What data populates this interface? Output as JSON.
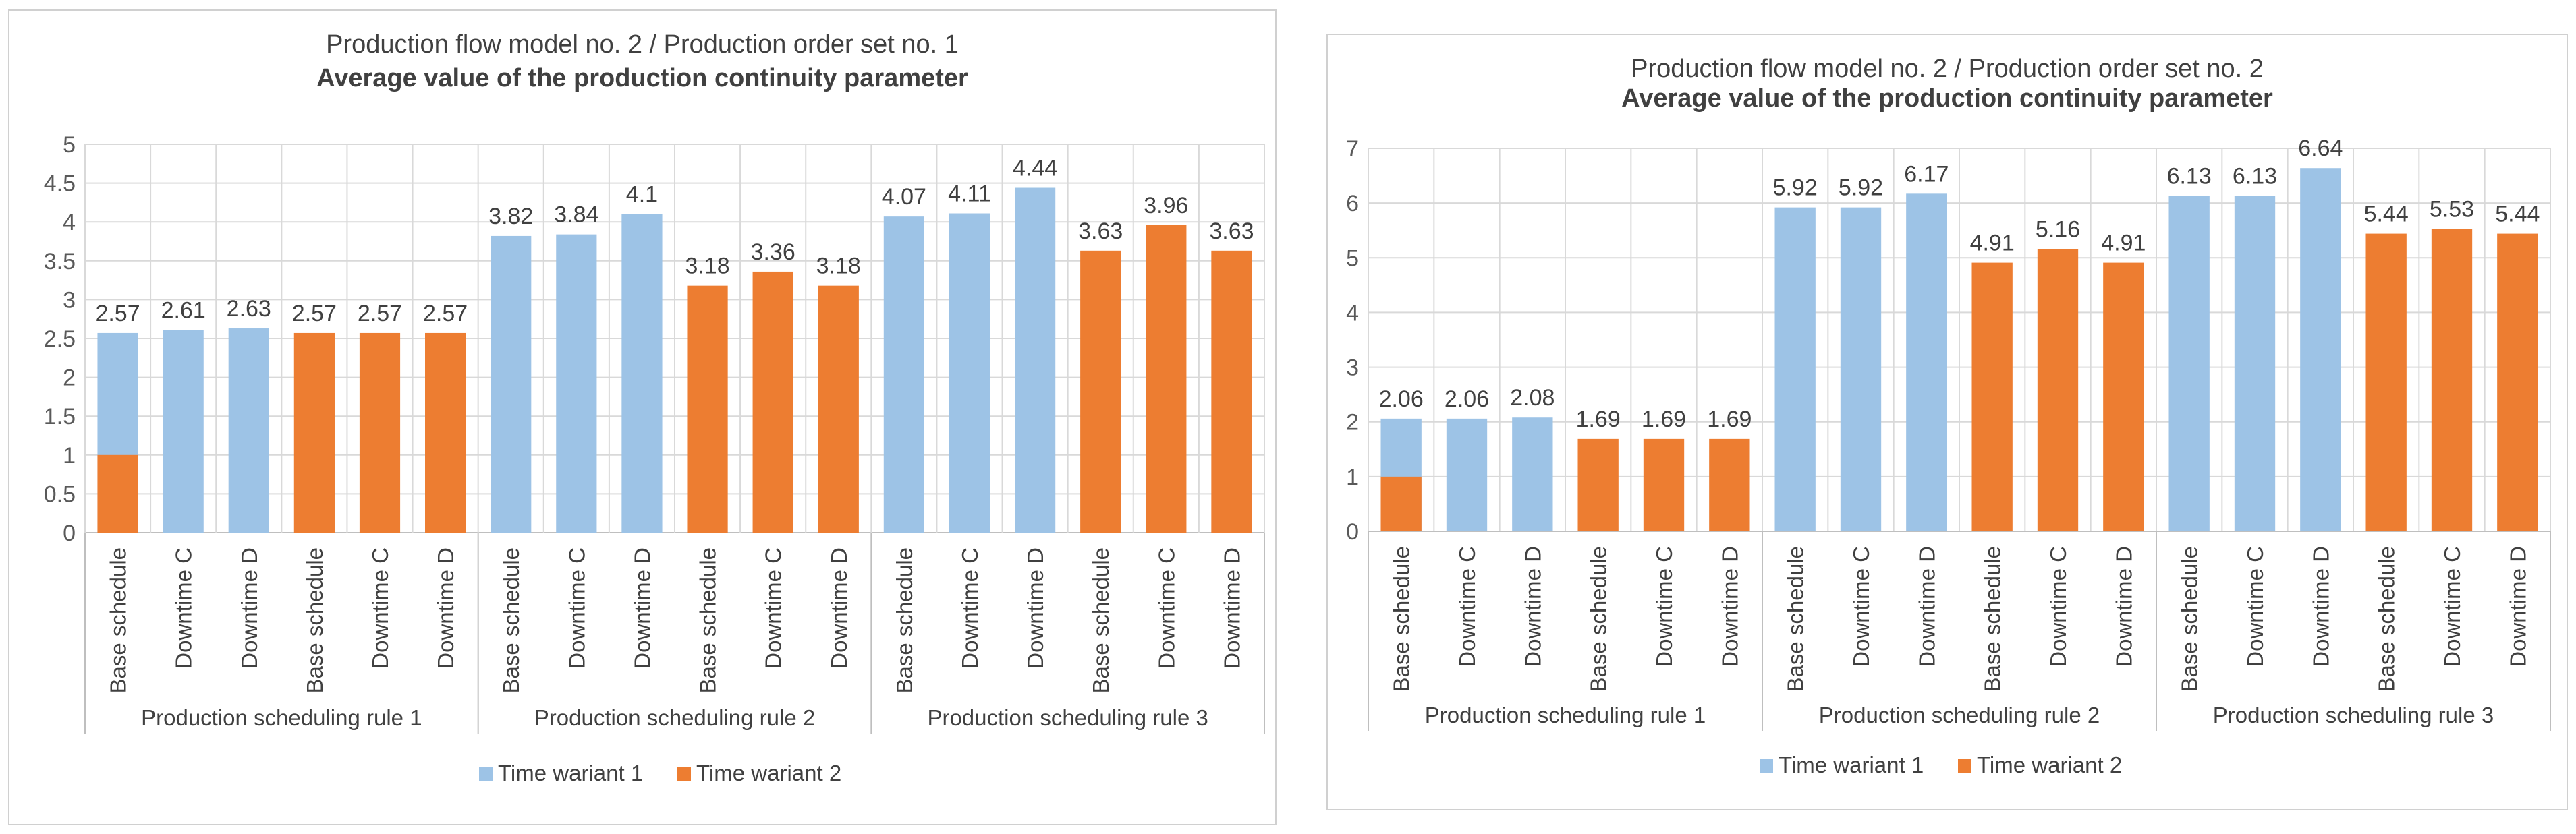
{
  "colors": {
    "variant1": "#9DC3E6",
    "variant2": "#ED7D31",
    "grid": "#D9D9D9",
    "axis": "#BFBFBF"
  },
  "chart_data": [
    {
      "type": "bar",
      "title": "Production flow model no. 2 / Production order set no. 1",
      "subtitle": "Average value of the production continuity parameter",
      "ylim": [
        0,
        5
      ],
      "yticks": [
        "0",
        "0.5",
        "1",
        "1.5",
        "2",
        "2.5",
        "3",
        "3.5",
        "4",
        "4.5",
        "5"
      ],
      "ytick_values": [
        0,
        0.5,
        1,
        1.5,
        2,
        2.5,
        3,
        3.5,
        4,
        4.5,
        5
      ],
      "groups": [
        "Production scheduling rule 1",
        "Production scheduling rule 2",
        "Production scheduling rule 3"
      ],
      "categories": [
        "Base schedule",
        "Downtime C",
        "Downtime D",
        "Base schedule",
        "Downtime C",
        "Downtime D",
        "Base schedule",
        "Downtime C",
        "Downtime D",
        "Base schedule",
        "Downtime C",
        "Downtime D",
        "Base schedule",
        "Downtime C",
        "Downtime D",
        "Base schedule",
        "Downtime C",
        "Downtime D"
      ],
      "values": [
        2.57,
        2.61,
        2.63,
        2.57,
        2.57,
        2.57,
        3.82,
        3.84,
        4.1,
        3.18,
        3.36,
        3.18,
        4.07,
        4.11,
        4.44,
        3.63,
        3.96,
        3.63
      ],
      "value_labels": [
        "2.57",
        "2.61",
        "2.63",
        "2.57",
        "2.57",
        "2.57",
        "3.82",
        "3.84",
        "4.1",
        "3.18",
        "3.36",
        "3.18",
        "4.07",
        "4.11",
        "4.44",
        "3.63",
        "3.96",
        "3.63"
      ],
      "series_index": [
        0,
        0,
        0,
        1,
        1,
        1,
        0,
        0,
        0,
        1,
        1,
        1,
        0,
        0,
        0,
        1,
        1,
        1
      ],
      "overlay": {
        "index": 0,
        "value": 1.0
      },
      "legend": [
        "Time wariant 1",
        "Time wariant 2"
      ],
      "legend_position": "bottom",
      "grid": true
    },
    {
      "type": "bar",
      "title": "Production flow model no. 2 / Production order set no. 2",
      "subtitle": "Average value of the production continuity parameter",
      "ylim": [
        0,
        7
      ],
      "yticks": [
        "0",
        "1",
        "2",
        "3",
        "4",
        "5",
        "6",
        "7"
      ],
      "ytick_values": [
        0,
        1,
        2,
        3,
        4,
        5,
        6,
        7
      ],
      "groups": [
        "Production scheduling rule 1",
        "Production scheduling rule 2",
        "Production scheduling rule 3"
      ],
      "categories": [
        "Base schedule",
        "Downtime C",
        "Downtime D",
        "Base schedule",
        "Downtime C",
        "Downtime D",
        "Base schedule",
        "Downtime C",
        "Downtime D",
        "Base schedule",
        "Downtime C",
        "Downtime D",
        "Base schedule",
        "Downtime C",
        "Downtime D",
        "Base schedule",
        "Downtime C",
        "Downtime D"
      ],
      "values": [
        2.06,
        2.06,
        2.08,
        1.69,
        1.69,
        1.69,
        5.92,
        5.92,
        6.17,
        4.91,
        5.16,
        4.91,
        6.13,
        6.13,
        6.64,
        5.44,
        5.53,
        5.44
      ],
      "value_labels": [
        "2.06",
        "2.06",
        "2.08",
        "1.69",
        "1.69",
        "1.69",
        "5.92",
        "5.92",
        "6.17",
        "4.91",
        "5.16",
        "4.91",
        "6.13",
        "6.13",
        "6.64",
        "5.44",
        "5.53",
        "5.44"
      ],
      "series_index": [
        0,
        0,
        0,
        1,
        1,
        1,
        0,
        0,
        0,
        1,
        1,
        1,
        0,
        0,
        0,
        1,
        1,
        1
      ],
      "overlay": {
        "index": 0,
        "value": 1.0
      },
      "legend": [
        "Time wariant 1",
        "Time wariant 2"
      ],
      "legend_position": "bottom",
      "grid": true
    }
  ]
}
